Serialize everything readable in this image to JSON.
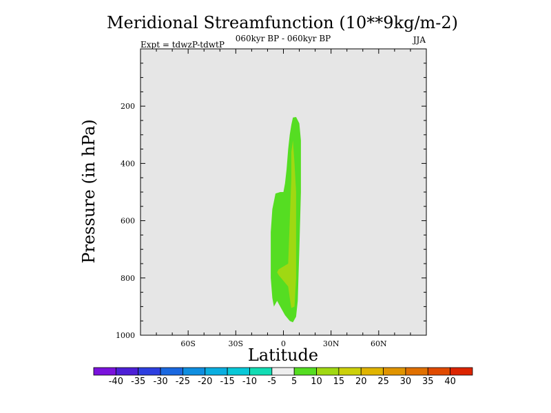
{
  "chart_data": {
    "type": "contour",
    "title": "Meridional Streamfunction (10**9kg/m-2)",
    "subtitle_center": "060kyr BP - 060kyr BP",
    "subtitle_left": "Expt = tdwzP-tdwtP",
    "subtitle_right": "JJA",
    "xlabel": "Latitude",
    "ylabel": "Pressure (in hPa)",
    "xlim": [
      -90,
      90
    ],
    "ylim": [
      1000,
      0
    ],
    "x_ticks": [
      {
        "value": -60,
        "label": "60S"
      },
      {
        "value": -30,
        "label": "30S"
      },
      {
        "value": 0,
        "label": "0"
      },
      {
        "value": 30,
        "label": "30N"
      },
      {
        "value": 60,
        "label": "60N"
      }
    ],
    "y_ticks": [
      {
        "value": 200,
        "label": "200"
      },
      {
        "value": 400,
        "label": "400"
      },
      {
        "value": 600,
        "label": "600"
      },
      {
        "value": 800,
        "label": "800"
      },
      {
        "value": 1000,
        "label": "1000"
      }
    ],
    "background_color": "#e6e6e6",
    "regions": [
      {
        "level": "5 to 10",
        "color": "#55dd22",
        "points": [
          [
            8,
            238
          ],
          [
            10,
            260
          ],
          [
            11,
            320
          ],
          [
            11,
            500
          ],
          [
            10,
            700
          ],
          [
            9,
            880
          ],
          [
            8,
            935
          ],
          [
            6,
            955
          ],
          [
            4,
            950
          ],
          [
            1,
            930
          ],
          [
            -1,
            910
          ],
          [
            -4,
            880
          ],
          [
            -6,
            900
          ],
          [
            -7,
            870
          ],
          [
            -8,
            800
          ],
          [
            -8,
            720
          ],
          [
            -8,
            640
          ],
          [
            -7,
            560
          ],
          [
            -5,
            505
          ],
          [
            -2,
            500
          ],
          [
            0,
            500
          ],
          [
            1,
            470
          ],
          [
            2,
            420
          ],
          [
            3,
            350
          ],
          [
            4,
            300
          ],
          [
            5,
            265
          ],
          [
            6,
            240
          ]
        ]
      },
      {
        "level": "10 to 15",
        "color": "#a0d812",
        "points": [
          [
            6,
            320
          ],
          [
            7,
            400
          ],
          [
            8,
            500
          ],
          [
            8,
            650
          ],
          [
            8,
            800
          ],
          [
            7,
            900
          ],
          [
            5,
            905
          ],
          [
            4,
            870
          ],
          [
            3,
            830
          ],
          [
            -3,
            790
          ],
          [
            -4,
            780
          ],
          [
            -3,
            770
          ],
          [
            3,
            750
          ],
          [
            4,
            600
          ],
          [
            5,
            450
          ],
          [
            5,
            360
          ]
        ]
      }
    ],
    "colorbar": {
      "labels": [
        "-40",
        "-35",
        "-30",
        "-25",
        "-20",
        "-15",
        "-10",
        "-5",
        "5",
        "10",
        "15",
        "20",
        "25",
        "30",
        "35",
        "40"
      ],
      "colors": [
        "#7a12dc",
        "#4c1fd6",
        "#2d3fe0",
        "#1a68e0",
        "#0f8ee0",
        "#0aaee0",
        "#08c8d8",
        "#12dcb4",
        "#eeeeee",
        "#55dd22",
        "#a0d812",
        "#ccd00a",
        "#e0b400",
        "#e09400",
        "#e07000",
        "#e04a00",
        "#dc2400"
      ]
    }
  }
}
